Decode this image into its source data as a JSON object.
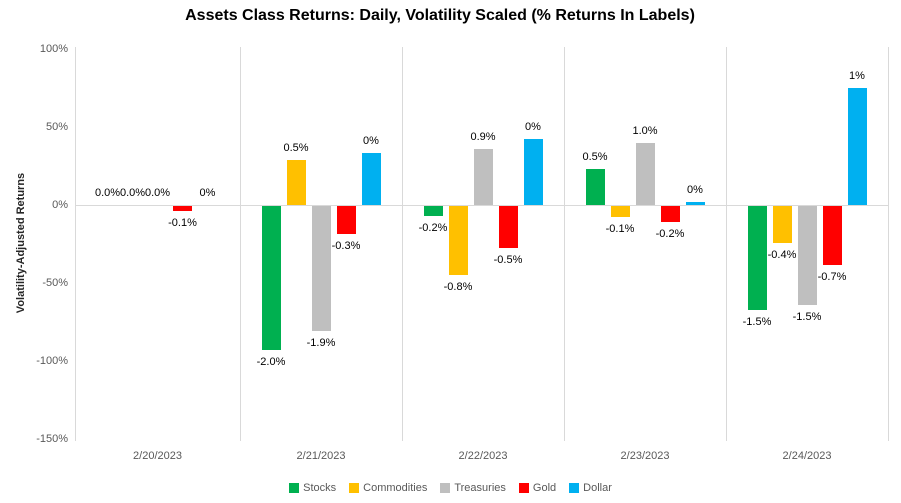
{
  "chart_data": {
    "type": "bar",
    "title": "Assets Class Returns: Daily, Volatility Scaled (% Returns In Labels)",
    "ylabel": "Volatility-Adjusted Returns",
    "xlabel": "",
    "categories": [
      "2/20/2023",
      "2/21/2023",
      "2/22/2023",
      "2/23/2023",
      "2/24/2023"
    ],
    "y_tick_labels": [
      "100%",
      "50%",
      "0%",
      "-50%",
      "-100%",
      "-150%"
    ],
    "y_tick_values": [
      100,
      50,
      0,
      -50,
      -100,
      -150
    ],
    "ylim": [
      -150,
      100
    ],
    "legend_position": "bottom",
    "series": [
      {
        "name": "Stocks",
        "color": "#00B050",
        "labels": [
          "0.0%",
          "-2.0%",
          "-0.2%",
          "0.5%",
          "-1.5%"
        ],
        "scaled_values": [
          0,
          -92.5,
          -6.4,
          23.3,
          -66.4
        ]
      },
      {
        "name": "Commodities",
        "color": "#FFC000",
        "labels": [
          "0.0%",
          "0.5%",
          "-0.8%",
          "-0.1%",
          "-0.4%"
        ],
        "scaled_values": [
          0,
          28.8,
          -44.2,
          -7,
          -24
        ]
      },
      {
        "name": "Treasuries",
        "color": "#BFBFBF",
        "labels": [
          "0.0%",
          "-1.9%",
          "0.9%",
          "1.0%",
          "-1.5%"
        ],
        "scaled_values": [
          0,
          -80.3,
          36.2,
          40,
          -63.5
        ]
      },
      {
        "name": "Gold",
        "color": "#FF0000",
        "labels": [
          "-0.1%",
          "-0.3%",
          "-0.5%",
          "-0.2%",
          "-0.7%"
        ],
        "scaled_values": [
          -3,
          -18,
          -27,
          -10,
          -37.5
        ]
      },
      {
        "name": "Dollar",
        "color": "#00B0F0",
        "labels": [
          "0%",
          "0%",
          "0%",
          "0%",
          "1%"
        ],
        "scaled_values": [
          0,
          33.5,
          42.5,
          2.2,
          75.2
        ]
      }
    ],
    "colors": {
      "grid": "#D9D9D9",
      "tick_text": "#595959",
      "data_label_text": "#000000",
      "title_text": "#000000"
    }
  }
}
